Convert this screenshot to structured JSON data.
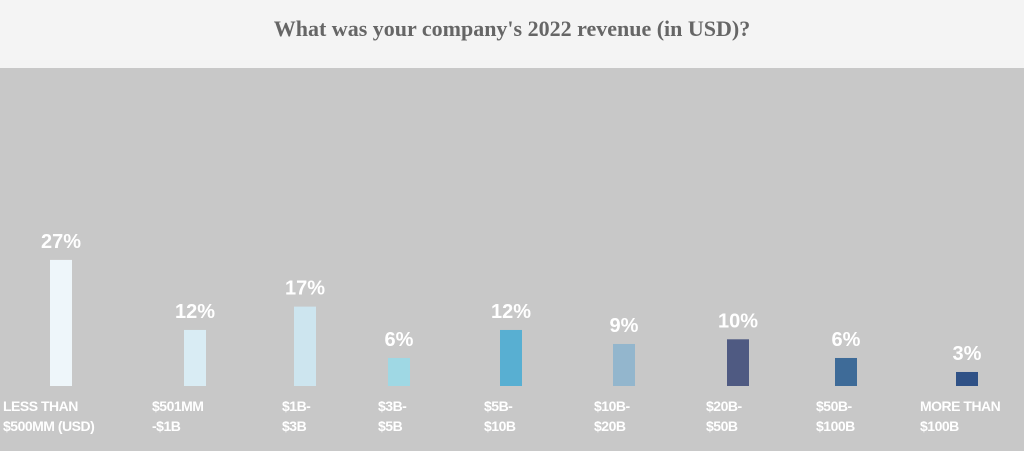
{
  "chart_data": {
    "type": "bar",
    "title": "What was your company's 2022 revenue (in USD)?",
    "categories": [
      "LESS THAN\n$500MM (USD)",
      "$501MM\n-$1B",
      "$1B-\n$3B",
      "$3B-\n$5B",
      "$5B-\n$10B",
      "$10B-\n$20B",
      "$20B-\n$50B",
      "$50B-\n$100B",
      "MORE THAN\n$100B"
    ],
    "values": [
      27,
      12,
      17,
      6,
      12,
      9,
      10,
      6,
      3
    ],
    "value_labels": [
      "27%",
      "12%",
      "17%",
      "6%",
      "12%",
      "9%",
      "10%",
      "6%",
      "3%"
    ],
    "colors": [
      "#eef6fa",
      "#d9ecf4",
      "#cde5ef",
      "#9fd8e4",
      "#58afd2",
      "#93b6cd",
      "#4f5a82",
      "#3e6b98",
      "#2f5186"
    ]
  }
}
